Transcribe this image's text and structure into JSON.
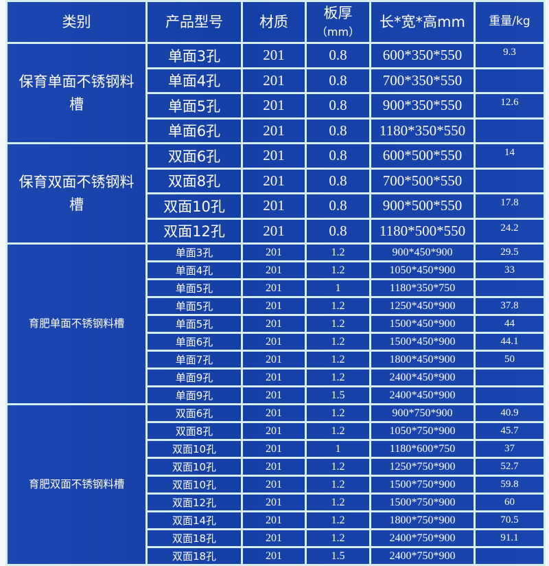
{
  "headers": {
    "category": "类别",
    "model": "产品型号",
    "material": "材质",
    "thickness": "板厚",
    "thickness_unit": "（mm）",
    "dimensions": "长*宽*高mm",
    "weight": "重量/kg"
  },
  "colors": {
    "cell_background": "#1a43aa",
    "border": "#d6eef6",
    "text": "#ffffff"
  },
  "groups": [
    {
      "category": "保育单面不锈钢料槽",
      "rows": [
        {
          "model": "单面3孔",
          "material": "201",
          "thickness": "0.8",
          "dimensions": "600*350*550",
          "weight": "9.3"
        },
        {
          "model": "单面4孔",
          "material": "201",
          "thickness": "0.8",
          "dimensions": "700*350*550",
          "weight": ""
        },
        {
          "model": "单面5孔",
          "material": "201",
          "thickness": "0.8",
          "dimensions": "900*350*550",
          "weight": "12.6"
        },
        {
          "model": "单面6孔",
          "material": "201",
          "thickness": "0.8",
          "dimensions": "1180*350*550",
          "weight": ""
        }
      ]
    },
    {
      "category": "保育双面不锈钢料槽",
      "rows": [
        {
          "model": "双面6孔",
          "material": "201",
          "thickness": "0.8",
          "dimensions": "600*500*550",
          "weight": "14"
        },
        {
          "model": "双面8孔",
          "material": "201",
          "thickness": "0.8",
          "dimensions": "700*500*550",
          "weight": ""
        },
        {
          "model": "双面10孔",
          "material": "201",
          "thickness": "0.8",
          "dimensions": "900*500*550",
          "weight": "17.8"
        },
        {
          "model": "双面12孔",
          "material": "201",
          "thickness": "0.8",
          "dimensions": "1180*500*550",
          "weight": "24.2"
        }
      ]
    },
    {
      "category": "育肥单面不锈钢料槽",
      "rows": [
        {
          "model": "单面3孔",
          "material": "201",
          "thickness": "1.2",
          "dimensions": "900*450*900",
          "weight": "29.5"
        },
        {
          "model": "单面4孔",
          "material": "201",
          "thickness": "1.2",
          "dimensions": "1050*450*900",
          "weight": "33"
        },
        {
          "model": "单面5孔",
          "material": "201",
          "thickness": "1",
          "dimensions": "1180*350*750",
          "weight": ""
        },
        {
          "model": "单面5孔",
          "material": "201",
          "thickness": "1.2",
          "dimensions": "1250*450*900",
          "weight": "37.8"
        },
        {
          "model": "单面5孔",
          "material": "201",
          "thickness": "1.2",
          "dimensions": "1500*450*900",
          "weight": "44"
        },
        {
          "model": "单面6孔",
          "material": "201",
          "thickness": "1.2",
          "dimensions": "1500*450*900",
          "weight": "44.1"
        },
        {
          "model": "单面7孔",
          "material": "201",
          "thickness": "1.2",
          "dimensions": "1800*450*900",
          "weight": "50"
        },
        {
          "model": "单面9孔",
          "material": "201",
          "thickness": "1.2",
          "dimensions": "2400*450*900",
          "weight": ""
        },
        {
          "model": "单面9孔",
          "material": "201",
          "thickness": "1.5",
          "dimensions": "2400*450*900",
          "weight": ""
        }
      ]
    },
    {
      "category": "育肥双面不锈钢料槽",
      "rows": [
        {
          "model": "双面6孔",
          "material": "201",
          "thickness": "1.2",
          "dimensions": "900*750*900",
          "weight": "40.9"
        },
        {
          "model": "双面8孔",
          "material": "201",
          "thickness": "1.2",
          "dimensions": "1050*750*900",
          "weight": "45.7"
        },
        {
          "model": "双面10孔",
          "material": "201",
          "thickness": "1",
          "dimensions": "1180*600*750",
          "weight": "37"
        },
        {
          "model": "双面10孔",
          "material": "201",
          "thickness": "1.2",
          "dimensions": "1250*750*900",
          "weight": "52.7"
        },
        {
          "model": "双面10孔",
          "material": "201",
          "thickness": "1.2",
          "dimensions": "1500*750*900",
          "weight": "59.8"
        },
        {
          "model": "双面12孔",
          "material": "201",
          "thickness": "1.2",
          "dimensions": "1500*750*900",
          "weight": "60"
        },
        {
          "model": "双面14孔",
          "material": "201",
          "thickness": "1.2",
          "dimensions": "1800*750*900",
          "weight": "70.5"
        },
        {
          "model": "双面18孔",
          "material": "201",
          "thickness": "1.2",
          "dimensions": "2400*750*900",
          "weight": "91.1"
        },
        {
          "model": "双面18孔",
          "material": "201",
          "thickness": "1.5",
          "dimensions": "2400*750*900",
          "weight": ""
        }
      ]
    }
  ]
}
